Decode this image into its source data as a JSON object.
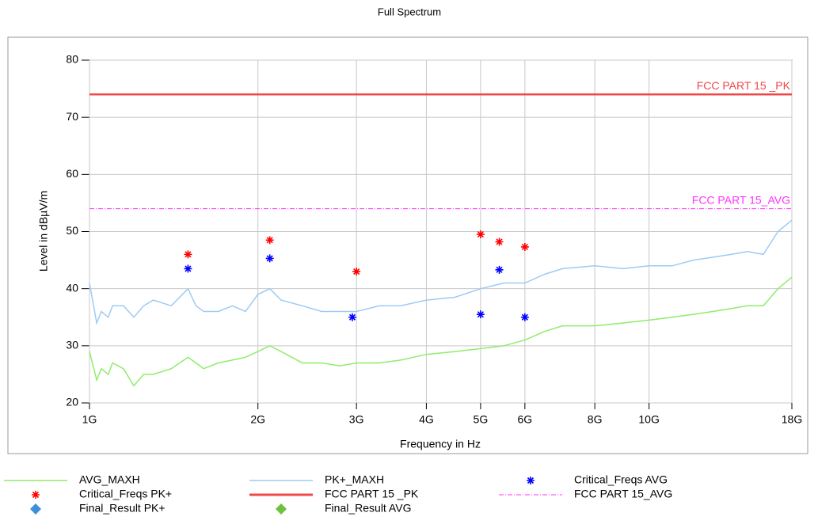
{
  "chart_data": {
    "type": "line",
    "title": "Full Spectrum",
    "x_label": "Frequency in Hz",
    "y_label": "Level in dBµV/m",
    "xscale": "log",
    "xlim": [
      1000000000.0,
      18000000000.0
    ],
    "ylim": [
      20,
      80
    ],
    "xticks": [
      {
        "value": 1000000000.0,
        "label": "1G"
      },
      {
        "value": 2000000000.0,
        "label": "2G"
      },
      {
        "value": 3000000000.0,
        "label": "3G"
      },
      {
        "value": 4000000000.0,
        "label": "4G"
      },
      {
        "value": 5000000000.0,
        "label": "5G"
      },
      {
        "value": 6000000000.0,
        "label": "6G"
      },
      {
        "value": 8000000000.0,
        "label": "8G"
      },
      {
        "value": 10000000000.0,
        "label": "10G"
      },
      {
        "value": 18000000000.0,
        "label": "18G"
      }
    ],
    "yticks": [
      20,
      30,
      40,
      50,
      60,
      70,
      80
    ],
    "grid": true,
    "series": [
      {
        "name": "AVG_MAXH",
        "color": "#8fec6c",
        "style": "line",
        "x": [
          1000000000.0,
          1030000000.0,
          1050000000.0,
          1080000000.0,
          1100000000.0,
          1150000000.0,
          1200000000.0,
          1250000000.0,
          1300000000.0,
          1400000000.0,
          1500000000.0,
          1550000000.0,
          1600000000.0,
          1700000000.0,
          1800000000.0,
          1900000000.0,
          2000000000.0,
          2100000000.0,
          2200000000.0,
          2400000000.0,
          2600000000.0,
          2800000000.0,
          3000000000.0,
          3300000000.0,
          3600000000.0,
          4000000000.0,
          4500000000.0,
          5000000000.0,
          5500000000.0,
          6000000000.0,
          6500000000.0,
          7000000000.0,
          8000000000.0,
          9000000000.0,
          10000000000.0,
          11000000000.0,
          12000000000.0,
          13000000000.0,
          14000000000.0,
          15000000000.0,
          16000000000.0,
          17000000000.0,
          18000000000.0
        ],
        "values": [
          29,
          24,
          26,
          25,
          27,
          26,
          23,
          25,
          25,
          26,
          28,
          27,
          26,
          27,
          27.5,
          28,
          29,
          30,
          29,
          27,
          27,
          26.5,
          27,
          27,
          27.5,
          28.5,
          29,
          29.5,
          30,
          31,
          32.5,
          33.5,
          33.5,
          34,
          34.5,
          35,
          35.5,
          36,
          36.5,
          37,
          37,
          40,
          42
        ]
      },
      {
        "name": "PK+_MAXH",
        "color": "#9ccbf5",
        "style": "line",
        "x": [
          1000000000.0,
          1030000000.0,
          1050000000.0,
          1080000000.0,
          1100000000.0,
          1150000000.0,
          1200000000.0,
          1250000000.0,
          1300000000.0,
          1400000000.0,
          1500000000.0,
          1550000000.0,
          1600000000.0,
          1700000000.0,
          1800000000.0,
          1900000000.0,
          2000000000.0,
          2100000000.0,
          2200000000.0,
          2400000000.0,
          2600000000.0,
          2800000000.0,
          3000000000.0,
          3300000000.0,
          3600000000.0,
          4000000000.0,
          4500000000.0,
          5000000000.0,
          5500000000.0,
          6000000000.0,
          6500000000.0,
          7000000000.0,
          8000000000.0,
          9000000000.0,
          10000000000.0,
          11000000000.0,
          12000000000.0,
          13000000000.0,
          14000000000.0,
          15000000000.0,
          16000000000.0,
          17000000000.0,
          18000000000.0
        ],
        "values": [
          41,
          34,
          36,
          35,
          37,
          37,
          35,
          37,
          38,
          37,
          40,
          37,
          36,
          36,
          37,
          36,
          39,
          40,
          38,
          37,
          36,
          36,
          36,
          37,
          37,
          38,
          38.5,
          40,
          41,
          41,
          42.5,
          43.5,
          44,
          43.5,
          44,
          44,
          45,
          45.5,
          46,
          46.5,
          46,
          50,
          52
        ]
      },
      {
        "name": "Critical_Freqs AVG",
        "color": "#0000ff",
        "style": "star",
        "x": [
          1500000000.0,
          2100000000.0,
          2950000000.0,
          5000000000.0,
          5400000000.0,
          6000000000.0
        ],
        "values": [
          43.5,
          45.3,
          35,
          35.5,
          43.3,
          35
        ]
      },
      {
        "name": "Critical_Freqs PK+",
        "color": "#ff0000",
        "style": "star",
        "x": [
          1500000000.0,
          2100000000.0,
          3000000000.0,
          5000000000.0,
          5400000000.0,
          6000000000.0
        ],
        "values": [
          46,
          48.5,
          43,
          49.5,
          48.2,
          47.3
        ]
      },
      {
        "name": "FCC PART 15 _PK",
        "color": "#f04848",
        "style": "limit",
        "x": [
          1000000000.0,
          18000000000.0
        ],
        "values": [
          74,
          74
        ]
      },
      {
        "name": "FCC PART 15_AVG",
        "color": "#ff33ff",
        "style": "dashdot",
        "x": [
          1000000000.0,
          18000000000.0
        ],
        "values": [
          54,
          54
        ]
      },
      {
        "name": "Final_Result PK+",
        "color": "#3d8fdc",
        "style": "diamond",
        "x": [],
        "values": []
      },
      {
        "name": "Final_Result AVG",
        "color": "#6cc23a",
        "style": "diamond",
        "x": [],
        "values": []
      }
    ]
  }
}
